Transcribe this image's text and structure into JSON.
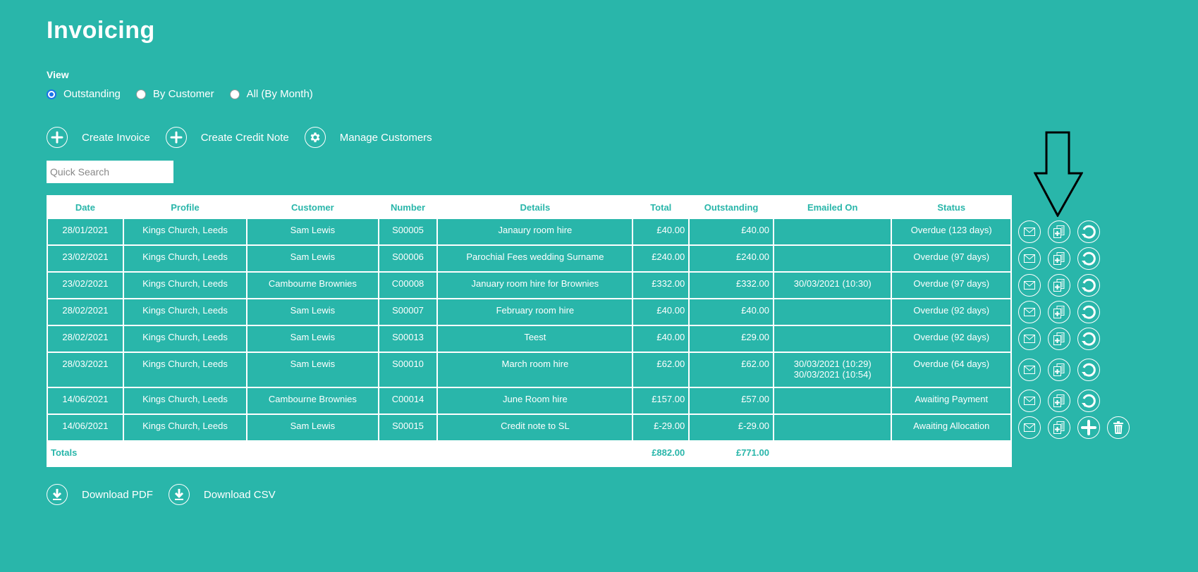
{
  "page": {
    "title": "Invoicing"
  },
  "view": {
    "label": "View",
    "options": [
      {
        "label": "Outstanding",
        "checked": true
      },
      {
        "label": "By Customer",
        "checked": false
      },
      {
        "label": "All (By Month)",
        "checked": false
      }
    ]
  },
  "actions": {
    "create_invoice": "Create Invoice",
    "create_credit_note": "Create Credit Note",
    "manage_customers": "Manage Customers"
  },
  "search": {
    "placeholder": "Quick Search",
    "value": ""
  },
  "table": {
    "headers": [
      "Date",
      "Profile",
      "Customer",
      "Number",
      "Details",
      "Total",
      "Outstanding",
      "Emailed On",
      "Status"
    ],
    "rows": [
      {
        "date": "28/01/2021",
        "profile": "Kings Church, Leeds",
        "customer": "Sam Lewis",
        "number": "S00005",
        "details": "Janaury room hire",
        "total": "£40.00",
        "outstanding": "£40.00",
        "emailed_on": "",
        "emailed_on_2": "",
        "status": "Overdue (123 days)",
        "actions": [
          "email",
          "duplicate",
          "refresh"
        ]
      },
      {
        "date": "23/02/2021",
        "profile": "Kings Church, Leeds",
        "customer": "Sam Lewis",
        "number": "S00006",
        "details": "Parochial Fees wedding Surname",
        "total": "£240.00",
        "outstanding": "£240.00",
        "emailed_on": "",
        "emailed_on_2": "",
        "status": "Overdue (97 days)",
        "actions": [
          "email",
          "duplicate",
          "refresh"
        ]
      },
      {
        "date": "23/02/2021",
        "profile": "Kings Church, Leeds",
        "customer": "Cambourne Brownies",
        "number": "C00008",
        "details": "January room hire for Brownies",
        "total": "£332.00",
        "outstanding": "£332.00",
        "emailed_on": "30/03/2021 (10:30)",
        "emailed_on_2": "",
        "status": "Overdue (97 days)",
        "actions": [
          "email",
          "duplicate",
          "refresh"
        ]
      },
      {
        "date": "28/02/2021",
        "profile": "Kings Church, Leeds",
        "customer": "Sam Lewis",
        "number": "S00007",
        "details": "February room hire",
        "total": "£40.00",
        "outstanding": "£40.00",
        "emailed_on": "",
        "emailed_on_2": "",
        "status": "Overdue (92 days)",
        "actions": [
          "email",
          "duplicate",
          "refresh"
        ]
      },
      {
        "date": "28/02/2021",
        "profile": "Kings Church, Leeds",
        "customer": "Sam Lewis",
        "number": "S00013",
        "details": "Teest",
        "total": "£40.00",
        "outstanding": "£29.00",
        "emailed_on": "",
        "emailed_on_2": "",
        "status": "Overdue (92 days)",
        "actions": [
          "email",
          "duplicate",
          "refresh"
        ]
      },
      {
        "date": "28/03/2021",
        "profile": "Kings Church, Leeds",
        "customer": "Sam Lewis",
        "number": "S00010",
        "details": "March room hire",
        "total": "£62.00",
        "outstanding": "£62.00",
        "emailed_on": "30/03/2021 (10:29)",
        "emailed_on_2": "30/03/2021 (10:54)",
        "status": "Overdue (64 days)",
        "actions": [
          "email",
          "duplicate",
          "refresh"
        ]
      },
      {
        "date": "14/06/2021",
        "profile": "Kings Church, Leeds",
        "customer": "Cambourne Brownies",
        "number": "C00014",
        "details": "June Room hire",
        "total": "£157.00",
        "outstanding": "£57.00",
        "emailed_on": "",
        "emailed_on_2": "",
        "status": "Awaiting Payment",
        "actions": [
          "email",
          "duplicate",
          "refresh"
        ]
      },
      {
        "date": "14/06/2021",
        "profile": "Kings Church, Leeds",
        "customer": "Sam Lewis",
        "number": "S00015",
        "details": "Credit note to SL",
        "total": "£-29.00",
        "outstanding": "£-29.00",
        "emailed_on": "",
        "emailed_on_2": "",
        "status": "Awaiting Allocation",
        "actions": [
          "email",
          "duplicate",
          "allocate",
          "delete"
        ]
      }
    ],
    "totals": {
      "label": "Totals",
      "total": "£882.00",
      "outstanding": "£771.00"
    }
  },
  "downloads": {
    "pdf": "Download PDF",
    "csv": "Download CSV"
  },
  "colors": {
    "background": "#29b6aa",
    "accent_text": "#29b6aa",
    "radio_selected": "#1a73e8"
  }
}
